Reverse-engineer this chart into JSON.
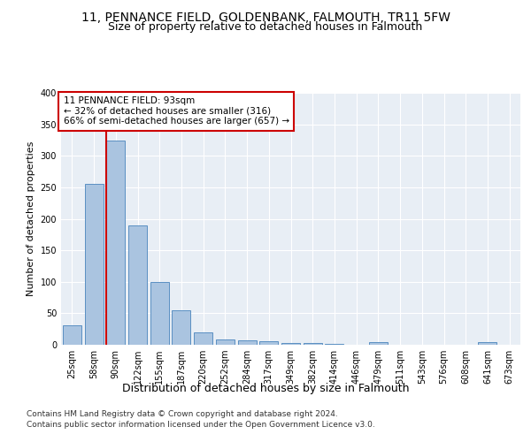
{
  "title": "11, PENNANCE FIELD, GOLDENBANK, FALMOUTH, TR11 5FW",
  "subtitle": "Size of property relative to detached houses in Falmouth",
  "xlabel": "Distribution of detached houses by size in Falmouth",
  "ylabel": "Number of detached properties",
  "categories": [
    "25sqm",
    "58sqm",
    "90sqm",
    "122sqm",
    "155sqm",
    "187sqm",
    "220sqm",
    "252sqm",
    "284sqm",
    "317sqm",
    "349sqm",
    "382sqm",
    "414sqm",
    "446sqm",
    "479sqm",
    "511sqm",
    "543sqm",
    "576sqm",
    "608sqm",
    "641sqm",
    "673sqm"
  ],
  "values": [
    31,
    256,
    324,
    190,
    100,
    55,
    19,
    9,
    7,
    5,
    3,
    3,
    2,
    0,
    4,
    0,
    0,
    0,
    0,
    4,
    0
  ],
  "bar_color": "#aac4e0",
  "bar_edge_color": "#5a8fc2",
  "red_line_x": 1.575,
  "annotation_line1": "11 PENNANCE FIELD: 93sqm",
  "annotation_line2": "← 32% of detached houses are smaller (316)",
  "annotation_line3": "66% of semi-detached houses are larger (657) →",
  "annotation_box_color": "#ffffff",
  "annotation_box_edge_color": "#cc0000",
  "red_line_color": "#cc0000",
  "ylim": [
    0,
    400
  ],
  "yticks": [
    0,
    50,
    100,
    150,
    200,
    250,
    300,
    350,
    400
  ],
  "background_color": "#e8eef5",
  "grid_color": "#ffffff",
  "footer_line1": "Contains HM Land Registry data © Crown copyright and database right 2024.",
  "footer_line2": "Contains public sector information licensed under the Open Government Licence v3.0.",
  "title_fontsize": 10,
  "subtitle_fontsize": 9,
  "xlabel_fontsize": 9,
  "ylabel_fontsize": 8,
  "tick_fontsize": 7,
  "annotation_fontsize": 7.5,
  "footer_fontsize": 6.5
}
